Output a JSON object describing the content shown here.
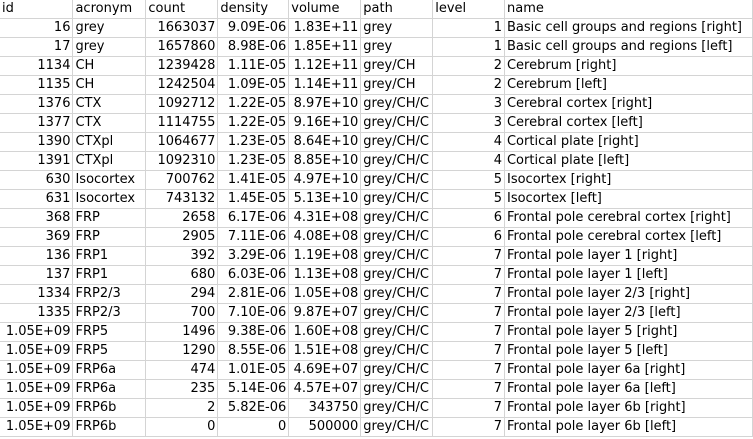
{
  "headers": [
    "id",
    "acronym",
    "count",
    "density",
    "volume",
    "path",
    "level",
    "name"
  ],
  "rows": [
    [
      "16",
      "grey",
      "1663037",
      "9.09E-06",
      "1.83E+11",
      "grey",
      "1",
      "Basic cell groups and regions [right]"
    ],
    [
      "17",
      "grey",
      "1657860",
      "8.98E-06",
      "1.85E+11",
      "grey",
      "1",
      "Basic cell groups and regions [left]"
    ],
    [
      "1134",
      "CH",
      "1239428",
      "1.11E-05",
      "1.12E+11",
      "grey/CH",
      "2",
      "Cerebrum [right]"
    ],
    [
      "1135",
      "CH",
      "1242504",
      "1.09E-05",
      "1.14E+11",
      "grey/CH",
      "2",
      "Cerebrum [left]"
    ],
    [
      "1376",
      "CTX",
      "1092712",
      "1.22E-05",
      "8.97E+10",
      "grey/CH/C",
      "3",
      "Cerebral cortex [right]"
    ],
    [
      "1377",
      "CTX",
      "1114755",
      "1.22E-05",
      "9.16E+10",
      "grey/CH/C",
      "3",
      "Cerebral cortex [left]"
    ],
    [
      "1390",
      "CTXpl",
      "1064677",
      "1.23E-05",
      "8.64E+10",
      "grey/CH/C",
      "4",
      "Cortical plate [right]"
    ],
    [
      "1391",
      "CTXpl",
      "1092310",
      "1.23E-05",
      "8.85E+10",
      "grey/CH/C",
      "4",
      "Cortical plate [left]"
    ],
    [
      "630",
      "Isocortex",
      "700762",
      "1.41E-05",
      "4.97E+10",
      "grey/CH/C",
      "5",
      "Isocortex [right]"
    ],
    [
      "631",
      "Isocortex",
      "743132",
      "1.45E-05",
      "5.13E+10",
      "grey/CH/C",
      "5",
      "Isocortex [left]"
    ],
    [
      "368",
      "FRP",
      "2658",
      "6.17E-06",
      "4.31E+08",
      "grey/CH/C",
      "6",
      "Frontal pole cerebral cortex [right]"
    ],
    [
      "369",
      "FRP",
      "2905",
      "7.11E-06",
      "4.08E+08",
      "grey/CH/C",
      "6",
      "Frontal pole cerebral cortex [left]"
    ],
    [
      "136",
      "FRP1",
      "392",
      "3.29E-06",
      "1.19E+08",
      "grey/CH/C",
      "7",
      "Frontal pole layer 1 [right]"
    ],
    [
      "137",
      "FRP1",
      "680",
      "6.03E-06",
      "1.13E+08",
      "grey/CH/C",
      "7",
      "Frontal pole layer 1 [left]"
    ],
    [
      "1334",
      "FRP2/3",
      "294",
      "2.81E-06",
      "1.05E+08",
      "grey/CH/C",
      "7",
      "Frontal pole layer 2/3 [right]"
    ],
    [
      "1335",
      "FRP2/3",
      "700",
      "7.10E-06",
      "9.87E+07",
      "grey/CH/C",
      "7",
      "Frontal pole layer 2/3 [left]"
    ],
    [
      "1.05E+09",
      "FRP5",
      "1496",
      "9.38E-06",
      "1.60E+08",
      "grey/CH/C",
      "7",
      "Frontal pole layer 5 [right]"
    ],
    [
      "1.05E+09",
      "FRP5",
      "1290",
      "8.55E-06",
      "1.51E+08",
      "grey/CH/C",
      "7",
      "Frontal pole layer 5 [left]"
    ],
    [
      "1.05E+09",
      "FRP6a",
      "474",
      "1.01E-05",
      "4.69E+07",
      "grey/CH/C",
      "7",
      "Frontal pole layer 6a [right]"
    ],
    [
      "1.05E+09",
      "FRP6a",
      "235",
      "5.14E-06",
      "4.57E+07",
      "grey/CH/C",
      "7",
      "Frontal pole layer 6a [left]"
    ],
    [
      "1.05E+09",
      "FRP6b",
      "2",
      "5.82E-06",
      "343750",
      "grey/CH/C",
      "7",
      "Frontal pole layer 6b [right]"
    ],
    [
      "1.05E+09",
      "FRP6b",
      "0",
      "0",
      "500000",
      "grey/CH/C",
      "7",
      "Frontal pole layer 6b [left]"
    ]
  ]
}
